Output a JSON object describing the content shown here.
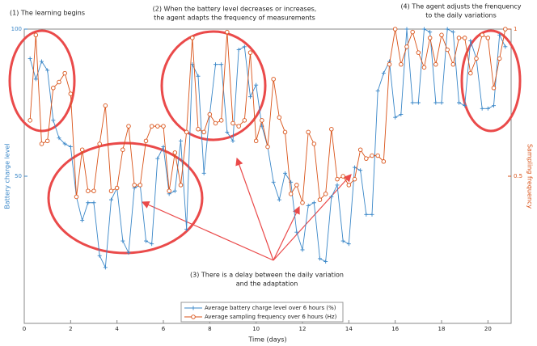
{
  "chart_data": {
    "type": "line",
    "xlabel": "Time (days)",
    "ylabel": "Battery charge level",
    "y2label": "Sampling frequency",
    "xlim": [
      0,
      21
    ],
    "xticks": [
      0,
      2,
      4,
      6,
      8,
      10,
      12,
      14,
      16,
      18,
      20
    ],
    "ylim": [
      0,
      100
    ],
    "yticks": [
      50,
      100
    ],
    "y2lim": [
      0,
      1
    ],
    "y2ticks": [
      0.5,
      1
    ],
    "x": [
      0.25,
      0.5,
      0.75,
      1,
      1.25,
      1.5,
      1.75,
      2,
      2.25,
      2.5,
      2.75,
      3,
      3.25,
      3.5,
      3.75,
      4,
      4.25,
      4.5,
      4.75,
      5,
      5.25,
      5.5,
      5.75,
      6,
      6.25,
      6.5,
      6.75,
      7,
      7.25,
      7.5,
      7.75,
      8,
      8.25,
      8.5,
      8.75,
      9,
      9.25,
      9.5,
      9.75,
      10,
      10.25,
      10.5,
      10.75,
      11,
      11.25,
      11.5,
      11.75,
      12,
      12.25,
      12.5,
      12.75,
      13,
      13.25,
      13.5,
      13.75,
      14,
      14.25,
      14.5,
      14.75,
      15,
      15.25,
      15.5,
      15.75,
      16,
      16.25,
      16.5,
      16.75,
      17,
      17.25,
      17.5,
      17.75,
      18,
      18.25,
      18.5,
      18.75,
      19,
      19.25,
      19.5,
      19.75,
      20,
      20.25,
      20.5,
      20.75
    ],
    "series": [
      {
        "name": "Average battery charge level over 6 hours (%)",
        "color": "#3a87c8",
        "marker": "plus",
        "values": [
          90,
          83,
          89,
          86,
          69,
          63,
          61,
          60,
          43,
          35,
          41,
          41,
          23,
          19,
          42,
          46,
          28,
          24,
          46,
          47,
          28,
          27,
          56,
          60,
          44,
          45,
          62,
          32,
          88,
          84,
          51,
          71,
          88,
          88,
          65,
          62,
          93,
          94,
          77,
          81,
          67,
          60,
          48,
          42,
          51,
          48,
          31,
          25,
          40,
          41,
          22,
          21,
          43,
          47,
          28,
          27,
          53,
          52,
          37,
          37,
          79,
          85,
          89,
          70,
          71,
          100,
          75,
          75,
          100,
          99,
          75,
          75,
          100,
          99,
          75,
          74,
          96,
          90,
          73,
          73,
          74,
          98,
          94
        ]
      },
      {
        "name": "Average sampling frequency over 6 hours (Hz)",
        "color": "#d95319",
        "marker": "circle",
        "axis": "y2",
        "values": [
          0.69,
          0.98,
          0.61,
          0.62,
          0.8,
          0.82,
          0.85,
          0.78,
          0.43,
          0.59,
          0.45,
          0.45,
          0.61,
          0.74,
          0.45,
          0.46,
          0.59,
          0.67,
          0.47,
          0.47,
          0.62,
          0.67,
          0.67,
          0.67,
          0.45,
          0.58,
          0.47,
          0.65,
          0.97,
          0.66,
          0.65,
          0.71,
          0.68,
          0.69,
          0.99,
          0.68,
          0.67,
          0.69,
          0.92,
          0.62,
          0.69,
          0.6,
          0.83,
          0.7,
          0.65,
          0.44,
          0.47,
          0.41,
          0.65,
          0.61,
          0.42,
          0.44,
          0.66,
          0.49,
          0.5,
          0.47,
          0.49,
          0.59,
          0.56,
          0.57,
          0.57,
          0.55,
          0.88,
          1.0,
          0.88,
          0.94,
          0.99,
          0.92,
          0.87,
          0.97,
          0.88,
          0.98,
          0.93,
          0.88,
          0.97,
          0.97,
          0.85,
          0.9,
          0.98,
          0.97,
          0.8,
          0.9,
          1.0
        ]
      }
    ],
    "annotations": [
      [
        "(1) The learning begins"
      ],
      [
        "(2) When the battery level decreases or increases,",
        "the agent adapts the frequency of measurements"
      ],
      [
        "(3) There is a delay between the daily variation",
        "and the adaptation"
      ],
      [
        "(4) The agent adjusts the frenquency",
        "to the daily variations"
      ]
    ]
  }
}
